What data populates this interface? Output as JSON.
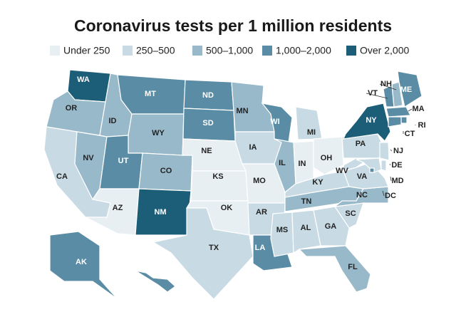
{
  "title": "Coronavirus tests per 1 million residents",
  "legend": [
    {
      "label": "Under 250",
      "color": "#e8eff3"
    },
    {
      "label": "250–500",
      "color": "#c8dae3"
    },
    {
      "label": "500–1,000",
      "color": "#98b9c9"
    },
    {
      "label": "1,000–2,000",
      "color": "#5a8da5"
    },
    {
      "label": "Over 2,000",
      "color": "#1c5d78"
    }
  ],
  "states": [
    {
      "label": "WA",
      "level": 4
    },
    {
      "label": "OR",
      "level": 2
    },
    {
      "label": "CA",
      "level": 1
    },
    {
      "label": "NV",
      "level": 2
    },
    {
      "label": "ID",
      "level": 2
    },
    {
      "label": "MT",
      "level": 3
    },
    {
      "label": "WY",
      "level": 2
    },
    {
      "label": "UT",
      "level": 3
    },
    {
      "label": "AZ",
      "level": 0
    },
    {
      "label": "CO",
      "level": 2
    },
    {
      "label": "NM",
      "level": 4
    },
    {
      "label": "ND",
      "level": 3
    },
    {
      "label": "SD",
      "level": 3
    },
    {
      "label": "NE",
      "level": 0
    },
    {
      "label": "KS",
      "level": 0
    },
    {
      "label": "OK",
      "level": 0
    },
    {
      "label": "TX",
      "level": 1
    },
    {
      "label": "MN",
      "level": 2
    },
    {
      "label": "IA",
      "level": 1
    },
    {
      "label": "MO",
      "level": 0
    },
    {
      "label": "AR",
      "level": 1
    },
    {
      "label": "LA",
      "level": 3
    },
    {
      "label": "WI",
      "level": 3
    },
    {
      "label": "IL",
      "level": 2
    },
    {
      "label": "MI",
      "level": 1
    },
    {
      "label": "IN",
      "level": 0
    },
    {
      "label": "OH",
      "level": 0
    },
    {
      "label": "KY",
      "level": 1
    },
    {
      "label": "TN",
      "level": 2
    },
    {
      "label": "MS",
      "level": 1
    },
    {
      "label": "AL",
      "level": 1
    },
    {
      "label": "GA",
      "level": 1
    },
    {
      "label": "FL",
      "level": 2
    },
    {
      "label": "SC",
      "level": 1
    },
    {
      "label": "NC",
      "level": 2
    },
    {
      "label": "VA",
      "level": 1
    },
    {
      "label": "WV",
      "level": 1
    },
    {
      "label": "PA",
      "level": 1
    },
    {
      "label": "NY",
      "level": 4
    },
    {
      "label": "VT",
      "level": 3
    },
    {
      "label": "NH",
      "level": 2
    },
    {
      "label": "ME",
      "level": 3
    },
    {
      "label": "MA",
      "level": 3
    },
    {
      "label": "RI",
      "level": 3
    },
    {
      "label": "CT",
      "level": 3
    },
    {
      "label": "NJ",
      "level": 1
    },
    {
      "label": "DE",
      "level": 1
    },
    {
      "label": "MD",
      "level": 1
    },
    {
      "label": "DC",
      "level": 3
    },
    {
      "label": "AK",
      "level": 3
    },
    {
      "label": "HI",
      "level": 3
    }
  ]
}
